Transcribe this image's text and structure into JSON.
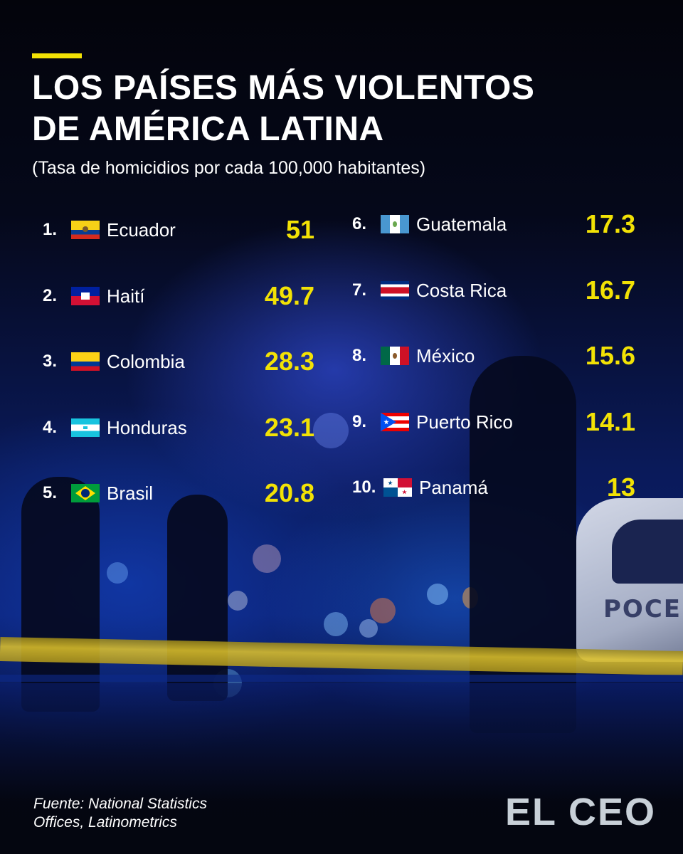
{
  "header": {
    "title_line1": "LOS PAÍSES MÁS VIOLENTOS",
    "title_line2": "DE AMÉRICA LATINA",
    "subtitle": "(Tasa de homicidios por cada 100,000 habitantes)"
  },
  "chart_data": {
    "type": "table",
    "title": "LOS PAÍSES MÁS VIOLENTOS DE AMÉRICA LATINA",
    "subtitle": "(Tasa de homicidios por cada 100,000 habitantes)",
    "rows": [
      {
        "rank": "1.",
        "country": "Ecuador",
        "value": 51,
        "value_label": "51",
        "flag": "ecuador-flag"
      },
      {
        "rank": "2.",
        "country": "Haití",
        "value": 49.7,
        "value_label": "49.7",
        "flag": "haiti-flag"
      },
      {
        "rank": "3.",
        "country": "Colombia",
        "value": 28.3,
        "value_label": "28.3",
        "flag": "colombia-flag"
      },
      {
        "rank": "4.",
        "country": "Honduras",
        "value": 23.1,
        "value_label": "23.1",
        "flag": "honduras-flag"
      },
      {
        "rank": "5.",
        "country": "Brasil",
        "value": 20.8,
        "value_label": "20.8",
        "flag": "brazil-flag"
      },
      {
        "rank": "6.",
        "country": "Guatemala",
        "value": 17.3,
        "value_label": "17.3",
        "flag": "guatemala-flag"
      },
      {
        "rank": "7.",
        "country": "Costa Rica",
        "value": 16.7,
        "value_label": "16.7",
        "flag": "costa-rica-flag"
      },
      {
        "rank": "8.",
        "country": "México",
        "value": 15.6,
        "value_label": "15.6",
        "flag": "mexico-flag"
      },
      {
        "rank": "9.",
        "country": "Puerto Rico",
        "value": 14.1,
        "value_label": "14.1",
        "flag": "puerto-rico-flag"
      },
      {
        "rank": "10.",
        "country": "Panamá",
        "value": 13,
        "value_label": "13",
        "flag": "panama-flag"
      }
    ]
  },
  "footer": {
    "source_line1": "Fuente: National Statistics",
    "source_line2": "Offices, Latinometrics",
    "logo": "EL CEO"
  },
  "colors": {
    "accent": "#f2e205",
    "text": "#ffffff",
    "background": "#0a1a5a"
  }
}
